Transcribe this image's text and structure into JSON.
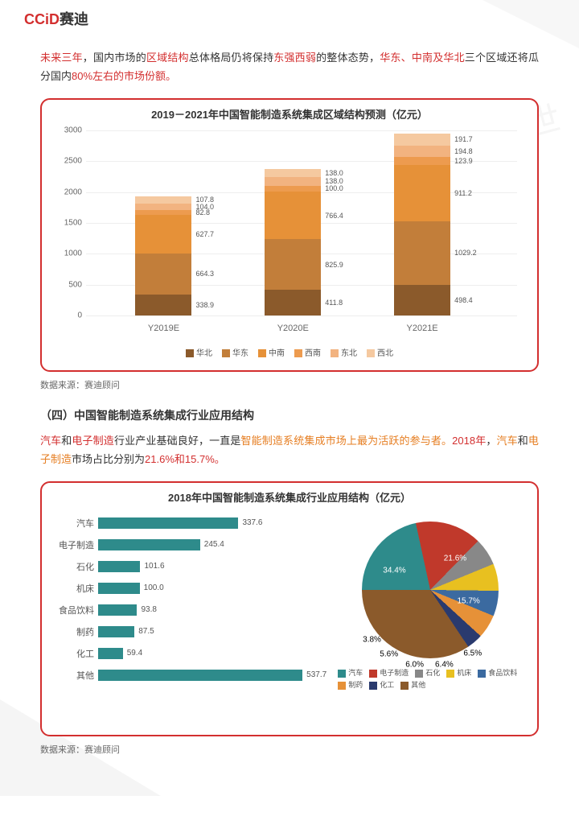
{
  "logo": {
    "en": "CCiD",
    "cn": "赛迪"
  },
  "watermark": "赛迪顾问\n思维创造世界",
  "intro": {
    "t1": "未来三年",
    "t2": "，国内市场的",
    "t3": "区域结构",
    "t4": "总体格局仍将保持",
    "t5": "东强西弱",
    "t6": "的整体态势，",
    "t7": "华东、中南及华北",
    "t8": "三个区域还将瓜分国内",
    "t9": "80%左右的市场份额。"
  },
  "chart1": {
    "title": "2019－2021年中国智能制造系统集成区域结构预测（亿元）",
    "yticks": [
      "0",
      "500",
      "1000",
      "1500",
      "2000",
      "2500",
      "3000"
    ],
    "ymax": 3000,
    "regions": [
      "华北",
      "华东",
      "中南",
      "西南",
      "东北",
      "西北"
    ],
    "colors": [
      "#8b5a2b",
      "#c27e3a",
      "#e69138",
      "#ed9b4f",
      "#f2b380",
      "#f5c9a0"
    ],
    "years": [
      {
        "label": "Y2019E",
        "x": 18,
        "vals": [
          338.9,
          664.3,
          627.7,
          82.8,
          104.0,
          107.8
        ]
      },
      {
        "label": "Y2020E",
        "x": 48,
        "vals": [
          411.8,
          825.9,
          766.4,
          100.0,
          138.0,
          138.0
        ]
      },
      {
        "label": "Y2021E",
        "x": 78,
        "vals": [
          498.4,
          1029.2,
          911.2,
          123.9,
          194.8,
          191.7
        ]
      }
    ],
    "source": "数据来源：赛迪顾问"
  },
  "section2": {
    "title": "（四）中国智能制造系统集成行业应用结构",
    "p": {
      "t1": "汽车",
      "t2": "和",
      "t3": "电子制造",
      "t4": "行业产业基础良好，一直是",
      "t5": "智能制造系统集成市场上最为活跃的参与者。",
      "t6": "2018年",
      "t7": "，",
      "t8": "汽车",
      "t9": "和",
      "t10": "电子制造",
      "t11": "市场占比分别为",
      "t12": "21.6%和15.7%。"
    }
  },
  "chart2": {
    "title": "2018年中国智能制造系统集成行业应用结构（亿元）",
    "bar_color": "#2e8b8b",
    "categories": [
      "汽车",
      "电子制造",
      "石化",
      "机床",
      "食品饮料",
      "制药",
      "化工",
      "其他"
    ],
    "values": [
      337.6,
      245.4,
      101.6,
      100.0,
      93.8,
      87.5,
      59.4,
      537.7
    ],
    "maxbar": 550,
    "pie": {
      "slices": [
        {
          "label": "汽车",
          "pct": 21.6,
          "color": "#2e8b8b"
        },
        {
          "label": "电子制造",
          "pct": 15.7,
          "color": "#c0392b"
        },
        {
          "label": "石化",
          "pct": 6.5,
          "color": "#888888"
        },
        {
          "label": "机床",
          "pct": 6.4,
          "color": "#e8c020"
        },
        {
          "label": "食品饮料",
          "pct": 6.0,
          "color": "#3b6aa0"
        },
        {
          "label": "制药",
          "pct": 5.6,
          "color": "#e69138"
        },
        {
          "label": "化工",
          "pct": 3.8,
          "color": "#2a3a6e"
        },
        {
          "label": "其他",
          "pct": 34.4,
          "color": "#8b5a2b"
        }
      ]
    },
    "source": "数据来源：赛迪顾问"
  }
}
